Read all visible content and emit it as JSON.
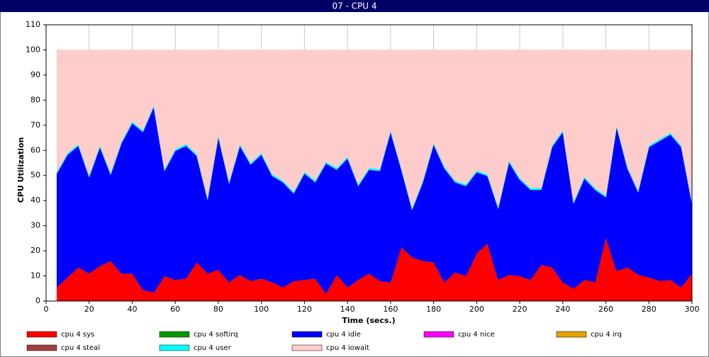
{
  "chart_data": {
    "type": "stacked_area",
    "title": "07 - CPU 4",
    "x_label": "Time (secs.)",
    "y_label": "CPU Utilization",
    "x": [
      5,
      10,
      15,
      20,
      25,
      30,
      35,
      40,
      45,
      50,
      55,
      60,
      65,
      70,
      75,
      80,
      85,
      90,
      95,
      100,
      105,
      110,
      115,
      120,
      125,
      130,
      135,
      140,
      145,
      150,
      155,
      160,
      165,
      170,
      175,
      180,
      185,
      190,
      195,
      200,
      205,
      210,
      215,
      220,
      225,
      230,
      235,
      240,
      245,
      250,
      255,
      260,
      265,
      270,
      275,
      280,
      285,
      290,
      295,
      300
    ],
    "xlim": [
      0,
      300
    ],
    "xticks": [
      0,
      20,
      40,
      60,
      80,
      100,
      120,
      140,
      160,
      180,
      200,
      220,
      240,
      260,
      280,
      300
    ],
    "ylim": [
      0,
      110
    ],
    "yticks": [
      0,
      10,
      20,
      30,
      40,
      50,
      60,
      70,
      80,
      90,
      100,
      110
    ],
    "grid": true,
    "series": [
      {
        "name": "cpu 4 sys",
        "color": "#ff0000",
        "values": [
          5.5,
          9.5,
          13.5,
          11,
          14,
          16,
          11,
          11,
          4.5,
          3.5,
          10,
          8.5,
          9,
          15.5,
          11,
          12.5,
          7.5,
          10.5,
          8,
          9,
          7.5,
          5.5,
          8,
          8.5,
          9,
          3,
          10.5,
          5.5,
          8.5,
          11,
          8,
          7.5,
          21.5,
          17.5,
          16,
          15.5,
          7.5,
          11.5,
          10,
          19,
          23,
          8.5,
          10.5,
          10,
          8.5,
          14.5,
          13.5,
          7.5,
          5,
          8.5,
          7.5,
          25.5,
          12,
          13.5,
          10.5,
          9.5,
          8,
          8.5,
          5.5,
          11
        ]
      },
      {
        "name": "cpu 4 softirq",
        "color": "#009900",
        "values": [
          0,
          0,
          0,
          0,
          0,
          0,
          0,
          0,
          0,
          0,
          0,
          0,
          0,
          0,
          0,
          0,
          0,
          0,
          0,
          0,
          0,
          0,
          0,
          0,
          0,
          0,
          0,
          0,
          0,
          0,
          0,
          0,
          0,
          0,
          0,
          0,
          0,
          0,
          0,
          0,
          0,
          0,
          0,
          0,
          0,
          0,
          0,
          0,
          0,
          0,
          0,
          0,
          0,
          0,
          0,
          0,
          0,
          0,
          0,
          0
        ]
      },
      {
        "name": "cpu 4 idle",
        "color": "#0000ff",
        "values": [
          45.3,
          48.8,
          48.3,
          38.3,
          47.3,
          34.3,
          51.8,
          59.8,
          62.8,
          73.8,
          41.8,
          51.3,
          52.8,
          42.3,
          29.3,
          52.8,
          39.3,
          51.3,
          46.3,
          49.3,
          42.3,
          41.8,
          34.8,
          42.3,
          38.3,
          51.8,
          41.8,
          51.3,
          37.3,
          41.3,
          43.8,
          59.8,
          30.8,
          18.8,
          31.3,
          46.8,
          45.3,
          35.8,
          35.8,
          32.3,
          26.8,
          28.3,
          44.8,
          38.3,
          35.8,
          29.8,
          47.8,
          59.8,
          33.8,
          40.3,
          36.8,
          15.8,
          57.3,
          39.3,
          32.8,
          51.8,
          55.8,
          57.8,
          55.8,
          27.8
        ]
      },
      {
        "name": "cpu 4 nice",
        "color": "#ff00ff",
        "values": [
          0,
          0,
          0,
          0,
          0,
          0,
          0,
          0,
          0,
          0,
          0,
          0,
          0,
          0,
          0,
          0,
          0,
          0,
          0,
          0,
          0,
          0,
          0,
          0,
          0,
          0,
          0,
          0,
          0,
          0,
          0,
          0,
          0,
          0,
          0,
          0,
          0,
          0,
          0,
          0,
          0,
          0,
          0,
          0,
          0,
          0,
          0,
          0,
          0,
          0,
          0,
          0,
          0,
          0,
          0,
          0,
          0,
          0,
          0,
          0
        ]
      },
      {
        "name": "cpu 4 irq",
        "color": "#e6a000",
        "values": [
          0,
          0,
          0,
          0,
          0,
          0,
          0,
          0,
          0,
          0,
          0,
          0,
          0,
          0,
          0,
          0,
          0,
          0,
          0,
          0,
          0,
          0,
          0,
          0,
          0,
          0,
          0,
          0,
          0,
          0,
          0,
          0,
          0,
          0,
          0,
          0,
          0,
          0,
          0,
          0,
          0,
          0,
          0,
          0,
          0,
          0,
          0,
          0,
          0,
          0,
          0,
          0,
          0,
          0,
          0,
          0,
          0,
          0,
          0,
          0
        ]
      },
      {
        "name": "cpu 4 steal",
        "color": "#a04040",
        "values": [
          0,
          0,
          0,
          0,
          0,
          0,
          0,
          0,
          0,
          0,
          0,
          0,
          0,
          0,
          0,
          0,
          0,
          0,
          0,
          0,
          0,
          0,
          0,
          0,
          0,
          0,
          0,
          0,
          0,
          0,
          0,
          0,
          0,
          0,
          0,
          0,
          0,
          0,
          0,
          0,
          0,
          0,
          0,
          0,
          0,
          0,
          0,
          0,
          0,
          0,
          0,
          0,
          0,
          0,
          0,
          0,
          0,
          0,
          0,
          0
        ]
      },
      {
        "name": "cpu 4 user",
        "color": "#00ffff",
        "values": [
          0.7,
          0.7,
          0.7,
          0.7,
          0.7,
          0.7,
          0.7,
          0.7,
          0.7,
          0.7,
          0.7,
          0.7,
          0.7,
          0.7,
          0.7,
          0.7,
          0.7,
          0.7,
          0.7,
          0.7,
          0.7,
          0.7,
          0.7,
          0.7,
          0.7,
          0.7,
          0.7,
          0.7,
          0.7,
          0.7,
          0.7,
          0.7,
          0.7,
          0.7,
          0.7,
          0.7,
          0.7,
          0.7,
          0.7,
          0.7,
          0.7,
          0.7,
          0.7,
          0.7,
          0.7,
          0.7,
          0.7,
          0.7,
          0.7,
          0.7,
          0.7,
          0.7,
          0.7,
          0.7,
          0.7,
          0.7,
          0.7,
          0.7,
          0.7,
          0.7
        ]
      },
      {
        "name": "cpu 4 iowait",
        "color": "#ffcccc",
        "values": [
          48.5,
          41,
          37.5,
          50,
          38,
          49,
          36.5,
          28.5,
          32,
          22,
          47.5,
          39.5,
          37.5,
          41.5,
          59,
          34,
          52.5,
          37.5,
          45,
          41,
          49.5,
          52,
          56.5,
          48.5,
          52,
          44.5,
          47,
          42.5,
          53.5,
          47,
          47.5,
          32,
          47,
          63,
          52,
          37,
          46.5,
          52,
          53.5,
          48,
          49.5,
          62.5,
          44,
          51,
          55,
          55,
          38,
          32,
          60.5,
          50.5,
          55,
          58,
          30,
          46.5,
          56,
          38,
          35.5,
          33,
          38,
          60.5
        ]
      }
    ]
  }
}
